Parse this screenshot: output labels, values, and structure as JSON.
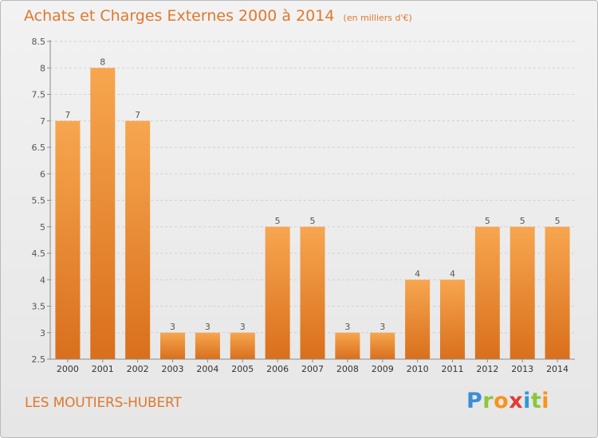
{
  "header": {
    "title": "Achats et Charges Externes 2000 à 2014",
    "unit": "(en milliers d'€)"
  },
  "footer": {
    "commune": "LES MOUTIERS-HUBERT",
    "logo_letters": [
      "P",
      "r",
      "o",
      "x",
      "i",
      "t",
      "i"
    ],
    "logo_colors": [
      "#3a8fd6",
      "#8cc63f",
      "#f7941d",
      "#e53935",
      "#2e9ad6",
      "#8cc63f",
      "#f7941d"
    ]
  },
  "chart_data": {
    "type": "bar",
    "categories": [
      "2000",
      "2001",
      "2002",
      "2003",
      "2004",
      "2005",
      "2006",
      "2007",
      "2008",
      "2009",
      "2010",
      "2011",
      "2012",
      "2013",
      "2014"
    ],
    "values": [
      7,
      8,
      7,
      3,
      3,
      3,
      5,
      5,
      3,
      3,
      4,
      4,
      5,
      5,
      5
    ],
    "data_labels": [
      "7",
      "8",
      "7",
      "3",
      "3",
      "3",
      "5",
      "5",
      "3",
      "3",
      "4",
      "4",
      "5",
      "5",
      "5"
    ],
    "yticks": [
      2.5,
      3,
      3.5,
      4,
      4.5,
      5,
      5.5,
      6,
      6.5,
      7,
      7.5,
      8,
      8.5
    ],
    "ytick_labels": [
      "2.5",
      "3",
      "3.5",
      "4",
      "4.5",
      "5",
      "5.5",
      "6",
      "6.5",
      "7",
      "7.5",
      "8",
      "8.5"
    ],
    "ylim": [
      2.5,
      8.5
    ],
    "grid": true,
    "colors": {
      "bar_top": "#f7a64f",
      "bar_bottom": "#d96f1c",
      "grid": "#d0d0d0",
      "text": "#555555",
      "accent": "#e0782c"
    }
  }
}
